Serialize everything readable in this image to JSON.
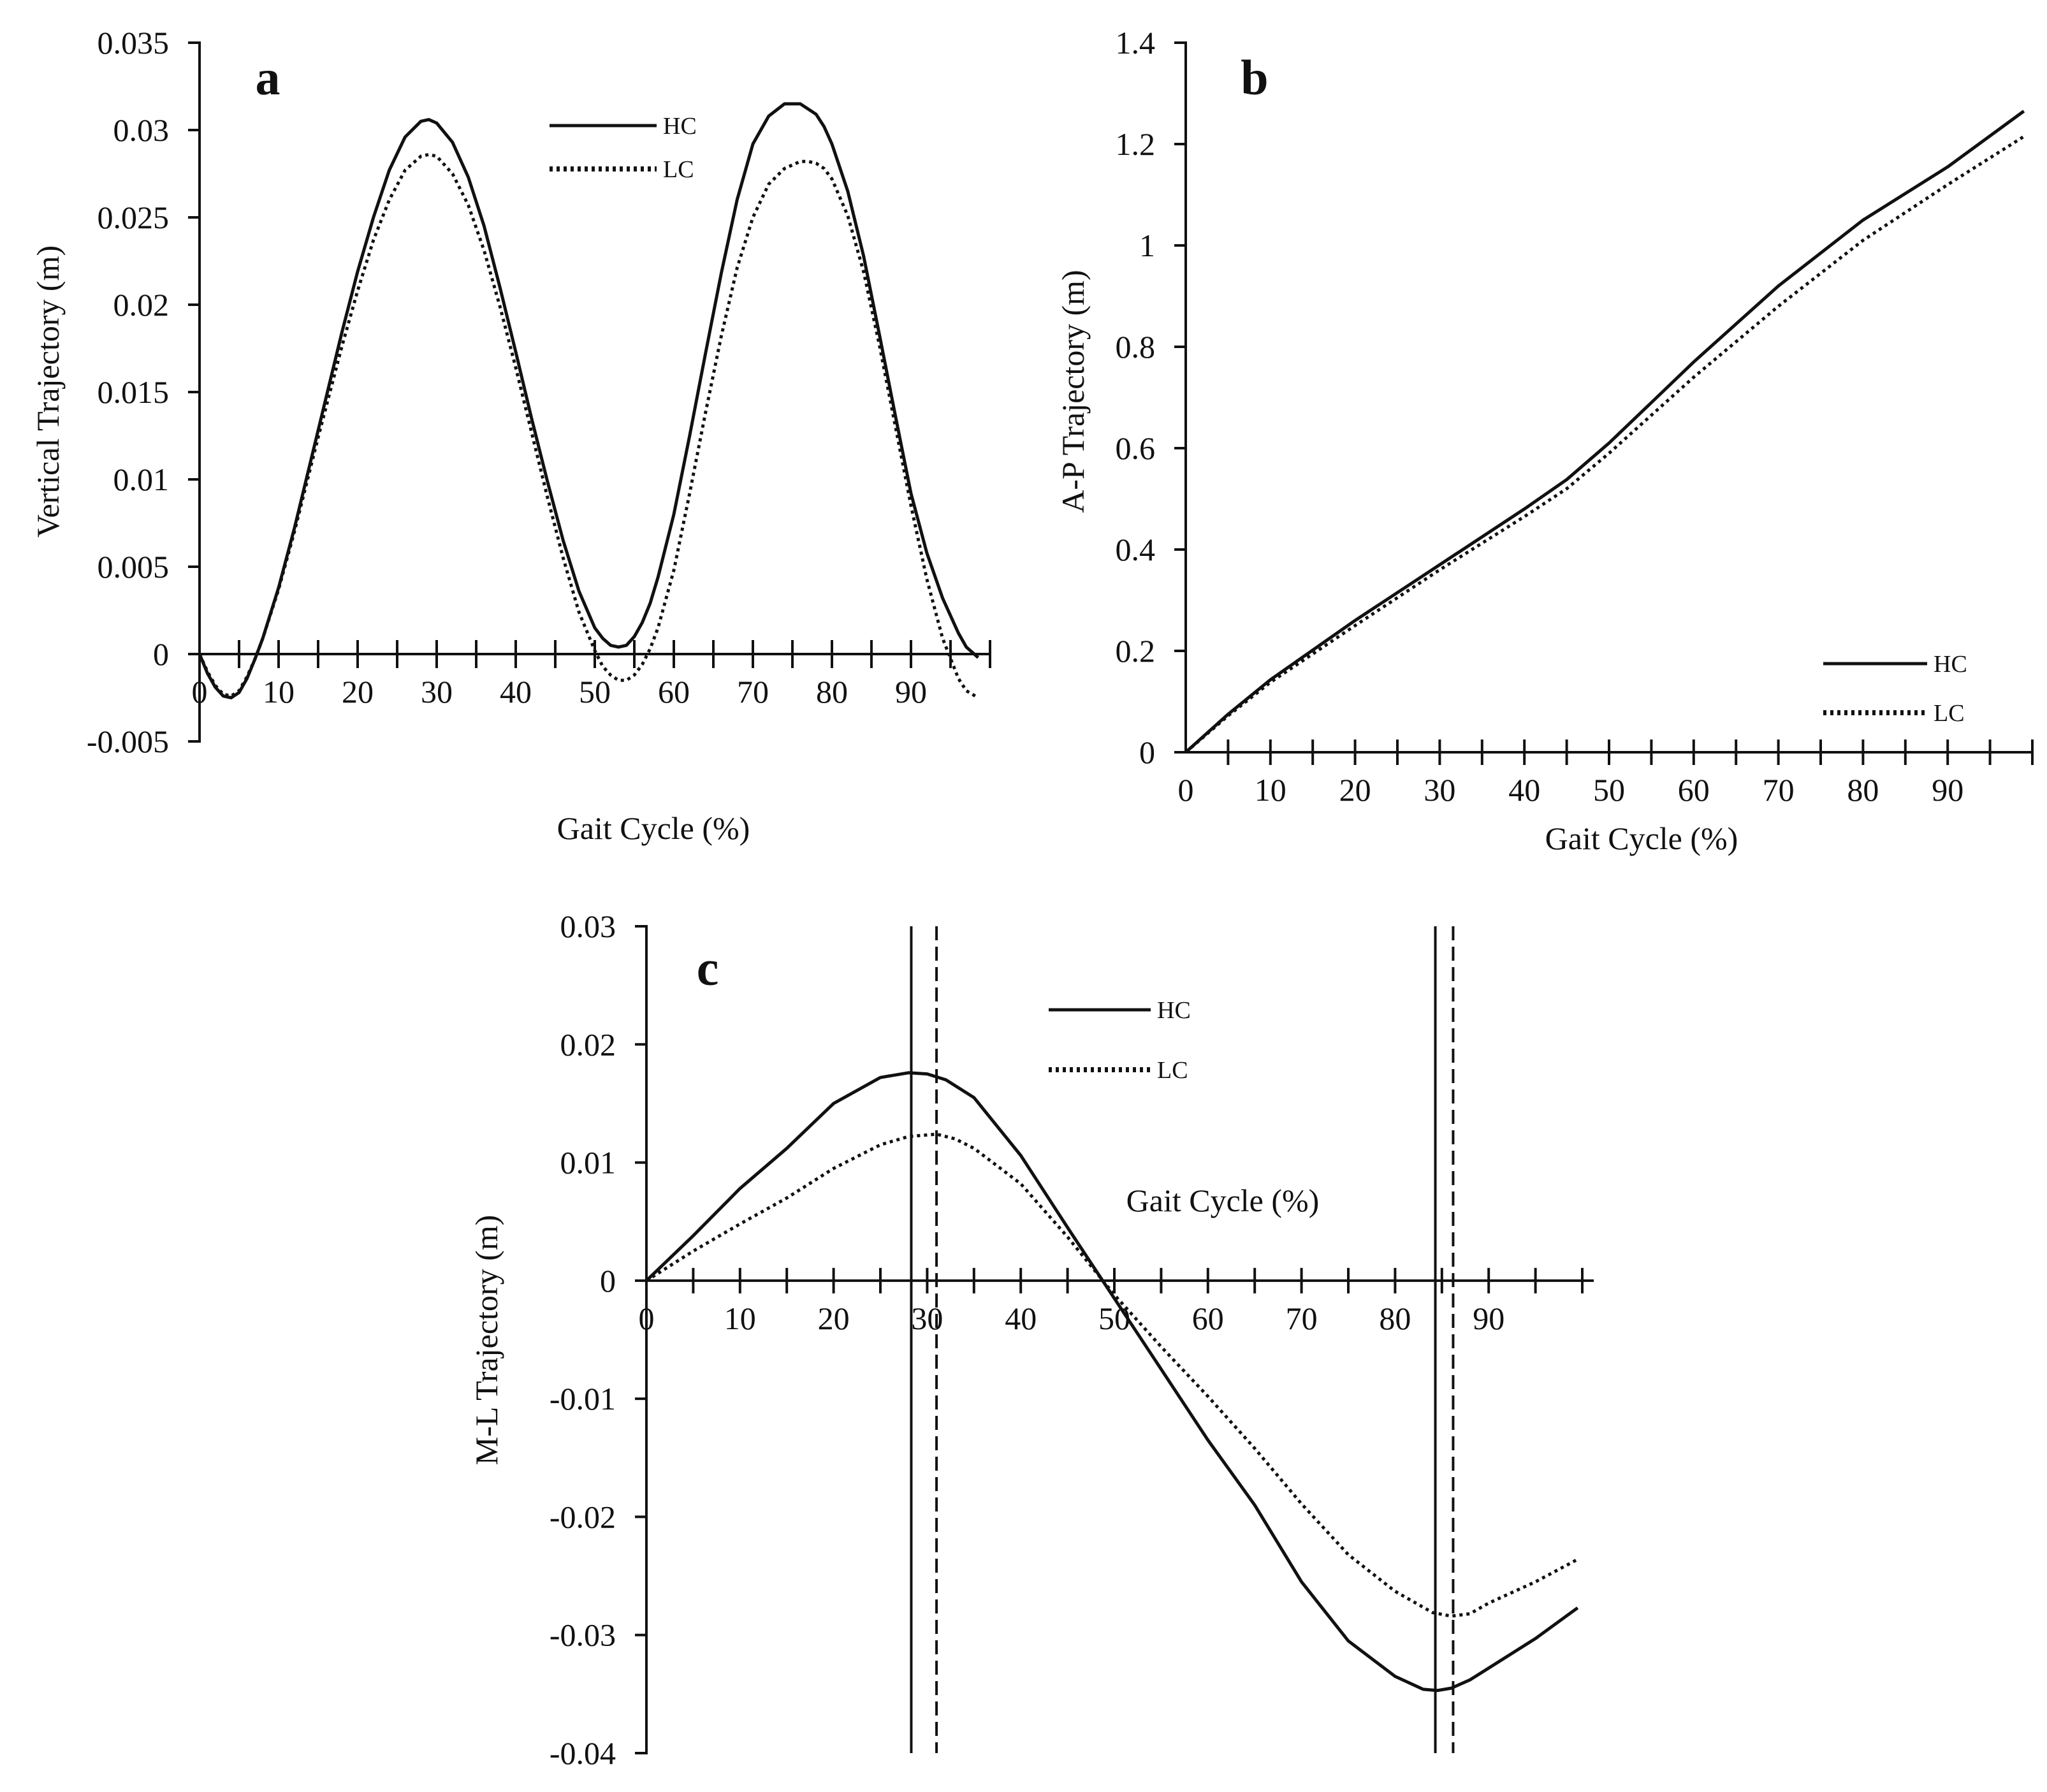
{
  "colors": {
    "ink": "#111111",
    "background": "#ffffff"
  },
  "chart_data": [
    {
      "type": "line",
      "panel_label": "a",
      "title": "",
      "xlabel": "Gait Cycle (%)",
      "ylabel": "Vertical Trajectory (m)",
      "xlim": [
        0,
        100
      ],
      "ylim": [
        -0.005,
        0.035
      ],
      "x_axis_at": 0,
      "x_minor_step": 5,
      "x_tick_values": [
        0,
        10,
        20,
        30,
        40,
        50,
        60,
        70,
        80,
        90
      ],
      "x_tick_labels": [
        "0",
        "10",
        "20",
        "30",
        "40",
        "50",
        "60",
        "70",
        "80",
        "90"
      ],
      "y_tick_values": [
        -0.005,
        0,
        0.005,
        0.01,
        0.015,
        0.02,
        0.025,
        0.03,
        0.035
      ],
      "y_tick_labels": [
        "-0.005",
        "0",
        "0.005",
        "0.01",
        "0.015",
        "0.02",
        "0.025",
        "0.03",
        "0.035"
      ],
      "legend": {
        "position": "top-right",
        "entries": [
          "HC",
          "LC"
        ]
      },
      "series": [
        {
          "name": "HC",
          "style": "solid",
          "x": [
            0,
            1,
            2,
            3,
            4,
            5,
            6,
            7,
            8,
            10,
            12,
            15,
            18,
            20,
            22,
            24,
            26,
            28,
            29,
            30,
            32,
            34,
            36,
            38,
            40,
            42,
            44,
            46,
            48,
            50,
            51,
            52,
            53,
            54,
            55,
            56,
            57,
            58,
            60,
            62,
            64,
            66,
            68,
            70,
            72,
            74,
            76,
            77,
            78,
            79,
            80,
            82,
            84,
            86,
            88,
            90,
            92,
            94,
            96,
            97,
            98.5
          ],
          "y": [
            0,
            -0.0011,
            -0.0019,
            -0.0024,
            -0.0025,
            -0.0022,
            -0.0014,
            -0.0003,
            0.0009,
            0.0038,
            0.0072,
            0.0128,
            0.0184,
            0.0219,
            0.025,
            0.0277,
            0.0296,
            0.0305,
            0.0306,
            0.0304,
            0.0293,
            0.0273,
            0.0245,
            0.021,
            0.0173,
            0.0135,
            0.0099,
            0.0065,
            0.0036,
            0.0015,
            0.0009,
            0.0005,
            0.0004,
            0.0005,
            0.001,
            0.0018,
            0.0029,
            0.0044,
            0.008,
            0.0125,
            0.0172,
            0.0218,
            0.026,
            0.0292,
            0.0308,
            0.0315,
            0.0315,
            0.0312,
            0.0309,
            0.0302,
            0.0292,
            0.0265,
            0.0228,
            0.0183,
            0.0137,
            0.0092,
            0.0058,
            0.0032,
            0.0012,
            0.0004,
            -0.0002
          ]
        },
        {
          "name": "LC",
          "style": "dotted",
          "x": [
            0,
            1,
            2,
            3,
            4,
            5,
            6,
            7,
            8,
            10,
            12,
            15,
            18,
            20,
            22,
            24,
            26,
            28,
            29,
            30,
            32,
            34,
            36,
            38,
            40,
            42,
            44,
            46,
            48,
            50,
            51,
            52,
            53,
            54,
            55,
            56,
            57,
            58,
            60,
            62,
            64,
            66,
            68,
            70,
            72,
            74,
            76,
            77,
            78,
            79,
            80,
            82,
            84,
            86,
            88,
            90,
            92,
            94,
            96,
            97,
            98.5
          ],
          "y": [
            0,
            -0.001,
            -0.0018,
            -0.0023,
            -0.0024,
            -0.0021,
            -0.0013,
            -0.0003,
            0.0009,
            0.0037,
            0.007,
            0.0124,
            0.0176,
            0.0208,
            0.0237,
            0.026,
            0.0277,
            0.0285,
            0.0286,
            0.0285,
            0.0275,
            0.0257,
            0.0231,
            0.0199,
            0.0164,
            0.0127,
            0.009,
            0.0055,
            0.0024,
            0.0002,
            -0.0007,
            -0.0012,
            -0.0015,
            -0.0015,
            -0.0012,
            -0.0006,
            0.0003,
            0.0015,
            0.0048,
            0.0092,
            0.0138,
            0.0182,
            0.0221,
            0.025,
            0.0269,
            0.0278,
            0.0282,
            0.0282,
            0.0281,
            0.0278,
            0.0272,
            0.0251,
            0.0219,
            0.0177,
            0.0131,
            0.0085,
            0.0043,
            0.0009,
            -0.0014,
            -0.0021,
            -0.0025
          ]
        }
      ]
    },
    {
      "type": "line",
      "panel_label": "b",
      "title": "",
      "xlabel": "Gait Cycle (%)",
      "ylabel": "A-P Trajectory (m)",
      "xlim": [
        0,
        100
      ],
      "ylim": [
        0,
        1.4
      ],
      "x_axis_at": 0,
      "x_minor_step": 5,
      "x_tick_values": [
        0,
        10,
        20,
        30,
        40,
        50,
        60,
        70,
        80,
        90
      ],
      "x_tick_labels": [
        "0",
        "10",
        "20",
        "30",
        "40",
        "50",
        "60",
        "70",
        "80",
        "90"
      ],
      "y_tick_values": [
        0,
        0.2,
        0.4,
        0.6,
        0.8,
        1,
        1.2,
        1.4
      ],
      "y_tick_labels": [
        "0",
        "0.2",
        "0.4",
        "0.6",
        "0.8",
        "1",
        "1.2",
        "1.4"
      ],
      "legend": {
        "position": "bottom-right",
        "entries": [
          "HC",
          "LC"
        ]
      },
      "series": [
        {
          "name": "HC",
          "style": "solid",
          "x": [
            0,
            5,
            10,
            20,
            30,
            40,
            45,
            50,
            55,
            60,
            70,
            80,
            90,
            99
          ],
          "y": [
            0,
            0.075,
            0.143,
            0.26,
            0.37,
            0.48,
            0.538,
            0.61,
            0.69,
            0.77,
            0.92,
            1.05,
            1.155,
            1.265
          ]
        },
        {
          "name": "LC",
          "style": "dotted",
          "x": [
            0,
            5,
            10,
            20,
            30,
            40,
            45,
            50,
            55,
            60,
            70,
            80,
            90,
            99
          ],
          "y": [
            0,
            0.072,
            0.138,
            0.25,
            0.36,
            0.465,
            0.52,
            0.59,
            0.665,
            0.74,
            0.88,
            1.01,
            1.12,
            1.215
          ]
        }
      ]
    },
    {
      "type": "line",
      "panel_label": "c",
      "title": "",
      "xlabel": "Gait Cycle (%)",
      "ylabel": "M-L Trajectory (m)",
      "xlim": [
        0,
        100
      ],
      "ylim": [
        -0.04,
        0.03
      ],
      "x_axis_at": 0,
      "x_minor_step": 5,
      "x_tick_values": [
        0,
        10,
        20,
        30,
        40,
        50,
        60,
        70,
        80,
        90
      ],
      "x_tick_labels": [
        "0",
        "10",
        "20",
        "30",
        "40",
        "50",
        "60",
        "70",
        "80",
        "90"
      ],
      "y_tick_values": [
        -0.04,
        -0.03,
        -0.02,
        -0.01,
        0,
        0.01,
        0.02,
        0.03
      ],
      "y_tick_labels": [
        "-0.04",
        "-0.03",
        "-0.02",
        "-0.01",
        "0",
        "0.01",
        "0.02",
        "0.03"
      ],
      "legend": {
        "position": "top-center",
        "entries": [
          "HC",
          "LC"
        ]
      },
      "reference_lines": [
        {
          "x": 28.3,
          "style": "solid"
        },
        {
          "x": 31,
          "style": "dashed"
        },
        {
          "x": 84.3,
          "style": "solid"
        },
        {
          "x": 86.2,
          "style": "dashed"
        }
      ],
      "series": [
        {
          "name": "HC",
          "style": "solid",
          "x": [
            0,
            5,
            10,
            15,
            20,
            25,
            28,
            30,
            32,
            35,
            40,
            45,
            50,
            55,
            60,
            65,
            70,
            75,
            80,
            83,
            84.5,
            86,
            88,
            90,
            95,
            99.5
          ],
          "y": [
            0,
            0.0038,
            0.0078,
            0.0112,
            0.015,
            0.0172,
            0.0176,
            0.0175,
            0.017,
            0.0155,
            0.0106,
            0.0045,
            -0.0015,
            -0.0075,
            -0.0135,
            -0.019,
            -0.0255,
            -0.0305,
            -0.0335,
            -0.0346,
            -0.0347,
            -0.0345,
            -0.0338,
            -0.0328,
            -0.0303,
            -0.0277
          ]
        },
        {
          "name": "LC",
          "style": "dotted",
          "x": [
            0,
            5,
            10,
            15,
            20,
            25,
            28,
            31,
            33,
            35,
            40,
            45,
            50,
            55,
            60,
            65,
            70,
            75,
            80,
            84,
            86,
            88,
            90,
            95,
            99.5
          ],
          "y": [
            0,
            0.0025,
            0.0048,
            0.007,
            0.0095,
            0.0115,
            0.0122,
            0.0124,
            0.012,
            0.0112,
            0.0082,
            0.0037,
            -0.0012,
            -0.0056,
            -0.0098,
            -0.0142,
            -0.0189,
            -0.0232,
            -0.0263,
            -0.0281,
            -0.0284,
            -0.0282,
            -0.0273,
            -0.0255,
            -0.0236
          ]
        }
      ]
    }
  ]
}
